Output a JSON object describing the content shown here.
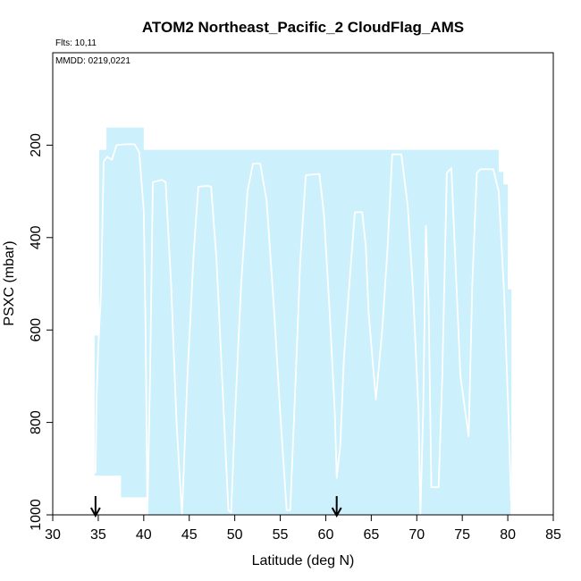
{
  "chart_data": {
    "type": "area",
    "title": "ATOM2 Northeast_Pacific_2 CloudFlag_AMS",
    "flights_label": "Flts: 10,11",
    "dates_label": "MMDD: 0219,0221",
    "xlabel": "Latitude (deg N)",
    "ylabel": "PSXC (mbar)",
    "xlim": [
      30,
      85
    ],
    "ylim": [
      1000,
      0
    ],
    "y_inverted": true,
    "x_ticks": [
      30,
      35,
      40,
      45,
      50,
      55,
      60,
      65,
      70,
      75,
      80,
      85
    ],
    "y_ticks": [
      200,
      400,
      600,
      800,
      1000
    ],
    "grid": false,
    "colors": {
      "cloud_fill": "#ccf0fc",
      "flight_track": "#ffffff",
      "arrow": "#000000"
    },
    "cloud_flag_region": [
      [
        34.6,
        915
      ],
      [
        34.6,
        612
      ],
      [
        35.1,
        612
      ],
      [
        35.1,
        210
      ],
      [
        35.9,
        210
      ],
      [
        35.9,
        162
      ],
      [
        40.0,
        162
      ],
      [
        40.0,
        210
      ],
      [
        79.0,
        210
      ],
      [
        79.0,
        258
      ],
      [
        79.5,
        258
      ],
      [
        79.5,
        285
      ],
      [
        80.0,
        285
      ],
      [
        80.0,
        512
      ],
      [
        80.4,
        512
      ],
      [
        80.4,
        1000
      ],
      [
        40.3,
        1000
      ],
      [
        40.3,
        962
      ],
      [
        37.5,
        962
      ],
      [
        37.5,
        915
      ]
    ],
    "flight_track": [
      [
        34.7,
        910
      ],
      [
        34.8,
        760
      ],
      [
        35.0,
        640
      ],
      [
        35.3,
        520
      ],
      [
        35.5,
        330
      ],
      [
        35.6,
        235
      ],
      [
        36.0,
        225
      ],
      [
        36.5,
        232
      ],
      [
        37.0,
        200
      ],
      [
        38.0,
        198
      ],
      [
        39.0,
        198
      ],
      [
        39.5,
        215
      ],
      [
        40.0,
        340
      ],
      [
        40.2,
        600
      ],
      [
        40.4,
        1000
      ],
      [
        40.7,
        700
      ],
      [
        41.0,
        280
      ],
      [
        42.0,
        275
      ],
      [
        42.4,
        280
      ],
      [
        43.0,
        500
      ],
      [
        43.6,
        800
      ],
      [
        44.2,
        1000
      ],
      [
        44.8,
        700
      ],
      [
        45.5,
        430
      ],
      [
        46.0,
        290
      ],
      [
        47.0,
        288
      ],
      [
        47.4,
        290
      ],
      [
        48.0,
        450
      ],
      [
        48.6,
        700
      ],
      [
        49.3,
        990
      ],
      [
        49.6,
        995
      ],
      [
        50.0,
        800
      ],
      [
        50.7,
        500
      ],
      [
        51.4,
        300
      ],
      [
        52.0,
        240
      ],
      [
        52.8,
        240
      ],
      [
        53.5,
        320
      ],
      [
        54.3,
        550
      ],
      [
        55.0,
        780
      ],
      [
        55.7,
        990
      ],
      [
        56.1,
        990
      ],
      [
        56.7,
        700
      ],
      [
        57.2,
        450
      ],
      [
        57.8,
        265
      ],
      [
        59.3,
        262
      ],
      [
        59.8,
        350
      ],
      [
        60.4,
        550
      ],
      [
        61.0,
        780
      ],
      [
        61.2,
        920
      ],
      [
        61.6,
        850
      ],
      [
        62.0,
        660
      ],
      [
        62.6,
        500
      ],
      [
        63.2,
        345
      ],
      [
        64.0,
        345
      ],
      [
        64.4,
        420
      ],
      [
        64.7,
        560
      ],
      [
        65.5,
        750
      ],
      [
        66.2,
        600
      ],
      [
        66.8,
        420
      ],
      [
        67.3,
        220
      ],
      [
        68.3,
        220
      ],
      [
        69.0,
        330
      ],
      [
        69.6,
        520
      ],
      [
        70.2,
        780
      ],
      [
        70.4,
        1000
      ],
      [
        70.7,
        780
      ],
      [
        71.0,
        375
      ],
      [
        71.3,
        540
      ],
      [
        71.6,
        940
      ],
      [
        72.4,
        940
      ],
      [
        72.8,
        700
      ],
      [
        73.3,
        260
      ],
      [
        73.8,
        250
      ],
      [
        74.2,
        430
      ],
      [
        74.8,
        700
      ],
      [
        75.7,
        830
      ],
      [
        76.1,
        500
      ],
      [
        76.6,
        260
      ],
      [
        77.0,
        252
      ],
      [
        78.4,
        252
      ],
      [
        79.0,
        300
      ],
      [
        79.6,
        520
      ],
      [
        80.1,
        800
      ],
      [
        80.4,
        1000
      ]
    ],
    "markers": [
      {
        "type": "down-arrow",
        "x": 34.7
      },
      {
        "type": "down-arrow",
        "x": 61.2
      }
    ]
  }
}
